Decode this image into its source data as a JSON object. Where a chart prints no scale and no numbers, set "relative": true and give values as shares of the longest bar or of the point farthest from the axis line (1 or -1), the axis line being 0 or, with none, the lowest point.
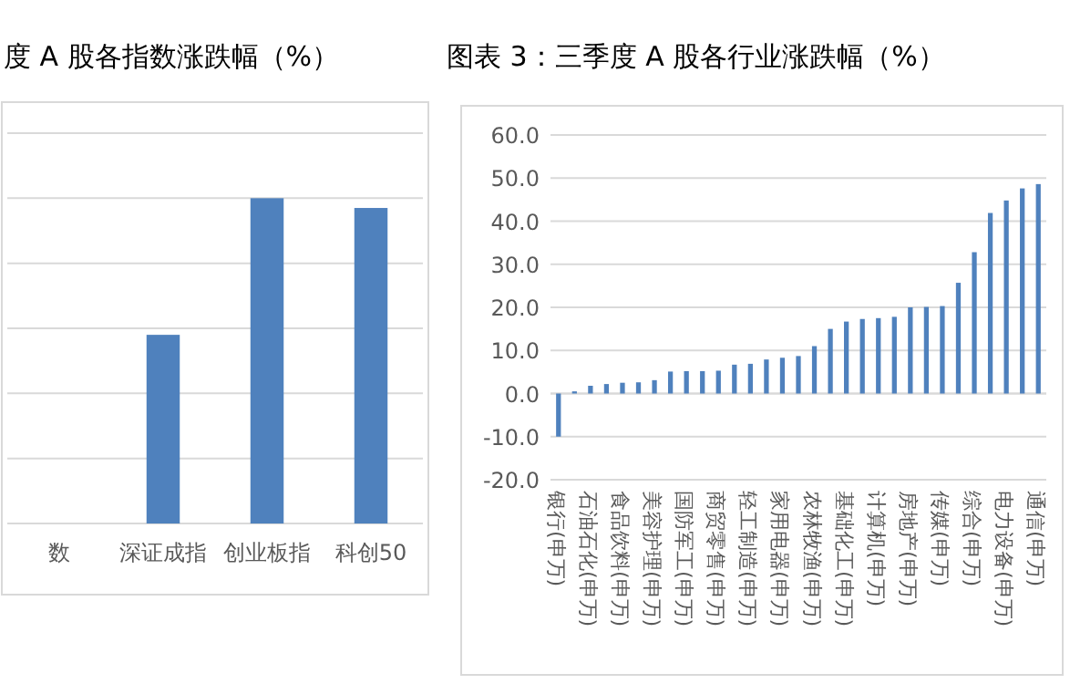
{
  "chart_data": [
    {
      "type": "bar",
      "title": "度 A 股各指数涨跌幅（%）",
      "categories": [
        "数",
        "深证成指",
        "创业板指",
        "科创50"
      ],
      "values": [
        null,
        0.58,
        1,
        0.97
      ],
      "color": "#4f81bd",
      "relative": true,
      "grid": "y"
    },
    {
      "type": "bar",
      "title": "图表 3：三季度 A 股各行业涨跌幅（%）",
      "categories": [
        "银行(申万)",
        null,
        "石油石化(申万)",
        null,
        "食品饮料(申万)",
        null,
        "美容护理(申万)",
        null,
        "国防军工(申万)",
        null,
        "商贸零售(申万)",
        null,
        "轻工制造(申万)",
        null,
        "家用电器(申万)",
        null,
        "农林牧渔(申万)",
        null,
        "基础化工(申万)",
        null,
        "计算机(申万)",
        null,
        "房地产(申万)",
        null,
        "传媒(申万)",
        null,
        "综合(申万)",
        null,
        "电力设备(申万)",
        null,
        "通信(申万)"
      ],
      "values": [
        -10.0,
        0.5,
        1.8,
        2.2,
        2.5,
        2.6,
        3.1,
        5.1,
        5.2,
        5.2,
        5.3,
        6.7,
        6.9,
        7.9,
        8.3,
        8.7,
        11.0,
        15.0,
        16.7,
        17.3,
        17.5,
        17.8,
        20.0,
        20.1,
        20.3,
        25.7,
        32.8,
        41.9,
        44.8,
        47.6,
        48.6
      ],
      "color": "#4f81bd",
      "ylim": [
        -20,
        60
      ],
      "yticks": [
        {
          "value": -20,
          "label": "-20.0"
        },
        {
          "value": -10,
          "label": "-10.0"
        },
        {
          "value": 0,
          "label": "0.0"
        },
        {
          "value": 10,
          "label": "10.0"
        },
        {
          "value": 20,
          "label": "20.0"
        },
        {
          "value": 30,
          "label": "30.0"
        },
        {
          "value": 40,
          "label": "40.0"
        },
        {
          "value": 50,
          "label": "50.0"
        },
        {
          "value": 60,
          "label": "60.0"
        }
      ],
      "grid": "y"
    }
  ]
}
